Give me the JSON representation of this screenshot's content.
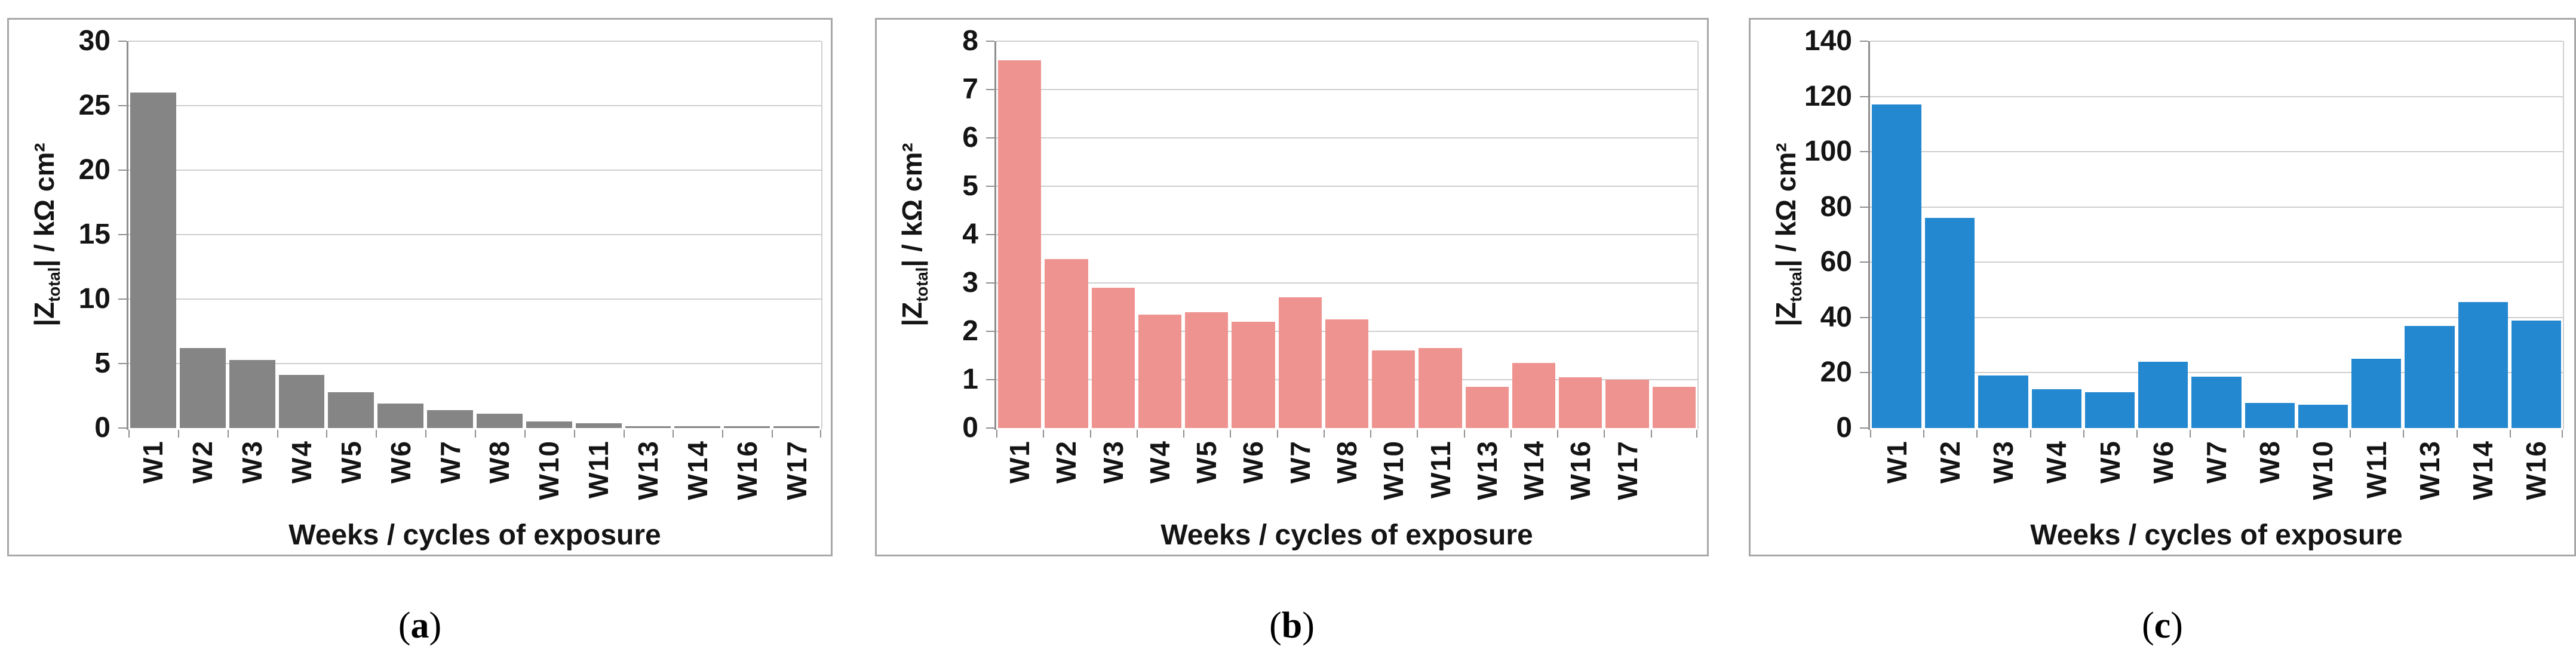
{
  "styles": {
    "panel_border_color": "#a8a8a8",
    "grid_color": "#cfcfcf",
    "axis_color": "#8f8f8f",
    "bar_color_a": "#858585",
    "bar_color_b": "#ee938f",
    "bar_color_c": "#2388d0"
  },
  "chart_data": [
    {
      "type": "bar",
      "panel_letter": "a",
      "cap_open": "(",
      "cap_close": ")",
      "xlabel": "Weeks / cycles of exposure",
      "ylabel_pre": "|Z",
      "ylabel_sub": "total",
      "ylabel_post": "| / kΩ cm²",
      "ylim": [
        0,
        30
      ],
      "yticks": [
        0,
        5,
        10,
        15,
        20,
        25,
        30
      ],
      "grid": true,
      "legend": "none",
      "bar_color": "#858585",
      "categories": [
        "W1",
        "W2",
        "W3",
        "W4",
        "W5",
        "W6",
        "W7",
        "W8",
        "W10",
        "W11",
        "W13",
        "W14",
        "W16",
        "W17"
      ],
      "values": [
        26,
        6.2,
        5.3,
        4.1,
        2.8,
        1.9,
        1.4,
        1.1,
        0.5,
        0.35,
        0.15,
        0.15,
        0.15,
        0.15
      ]
    },
    {
      "type": "bar",
      "panel_letter": "b",
      "cap_open": "(",
      "cap_close": ")",
      "xlabel": "Weeks / cycles of exposure",
      "ylabel_pre": "|Z",
      "ylabel_sub": "total",
      "ylabel_post": "| / kΩ cm²",
      "ylim": [
        0,
        8
      ],
      "yticks": [
        0,
        1,
        2,
        3,
        4,
        5,
        6,
        7,
        8
      ],
      "grid": true,
      "legend": "none",
      "bar_color": "#ee938f",
      "categories": [
        "W1",
        "W2",
        "W3",
        "W4",
        "W5",
        "W6",
        "W7",
        "W8",
        "W10",
        "W11",
        "W13",
        "W14",
        "W16",
        "W17",
        ""
      ],
      "values": [
        7.6,
        3.5,
        2.9,
        2.35,
        2.4,
        2.2,
        2.7,
        2.25,
        1.6,
        1.65,
        0.85,
        1.35,
        1.05,
        1.0,
        0.85
      ]
    },
    {
      "type": "bar",
      "panel_letter": "c",
      "cap_open": "(",
      "cap_close": ")",
      "xlabel": "Weeks / cycles of exposure",
      "ylabel_pre": "|Z",
      "ylabel_sub": "total",
      "ylabel_post": "| / kΩ cm²",
      "ylim": [
        0,
        140
      ],
      "yticks": [
        0,
        20,
        40,
        60,
        80,
        100,
        120,
        140
      ],
      "grid": true,
      "legend": "none",
      "bar_color": "#2388d0",
      "categories": [
        "W1",
        "W2",
        "W3",
        "W4",
        "W5",
        "W6",
        "W7",
        "W8",
        "W10",
        "W11",
        "W13",
        "W14",
        "W16"
      ],
      "values": [
        117,
        76,
        19,
        14,
        13,
        24,
        18.5,
        9,
        8.5,
        25,
        37,
        45.5,
        39
      ]
    }
  ]
}
